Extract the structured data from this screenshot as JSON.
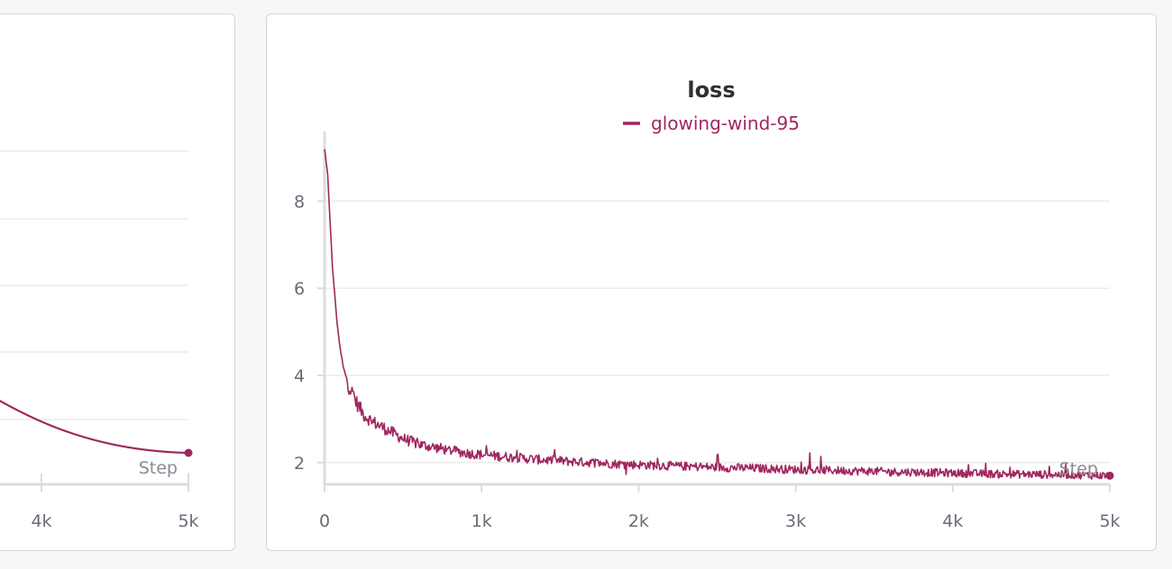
{
  "colors": {
    "series": "#a0275f",
    "grid": "#ececec",
    "axis": "#dcdcdc"
  },
  "left_panel": {
    "x_axis_label": "Step",
    "x_ticks": [
      "4k",
      "5k"
    ]
  },
  "chart_data": {
    "type": "line",
    "title": "loss",
    "xlabel": "Step",
    "ylabel": "",
    "xlim": [
      0,
      5000
    ],
    "ylim": [
      1.5,
      9.6
    ],
    "x_ticks": [
      {
        "value": 0,
        "label": "0"
      },
      {
        "value": 1000,
        "label": "1k"
      },
      {
        "value": 2000,
        "label": "2k"
      },
      {
        "value": 3000,
        "label": "3k"
      },
      {
        "value": 4000,
        "label": "4k"
      },
      {
        "value": 5000,
        "label": "5k"
      }
    ],
    "y_ticks": [
      {
        "value": 2,
        "label": "2"
      },
      {
        "value": 4,
        "label": "4"
      },
      {
        "value": 6,
        "label": "6"
      },
      {
        "value": 8,
        "label": "8"
      }
    ],
    "grid": true,
    "legend_position": "top-center",
    "series": [
      {
        "name": "glowing-wind-95",
        "color": "#a0275f",
        "x": [
          0,
          20,
          50,
          80,
          100,
          120,
          150,
          200,
          250,
          300,
          400,
          500,
          600,
          700,
          800,
          900,
          1000,
          1200,
          1400,
          1600,
          1800,
          2000,
          2250,
          2500,
          2750,
          3000,
          3250,
          3500,
          3750,
          4000,
          4250,
          4500,
          4750,
          5000
        ],
        "y": [
          9.2,
          8.6,
          6.5,
          5.2,
          4.6,
          4.2,
          3.8,
          3.4,
          3.1,
          2.95,
          2.75,
          2.55,
          2.42,
          2.35,
          2.28,
          2.22,
          2.18,
          2.12,
          2.06,
          2.02,
          1.98,
          1.95,
          1.92,
          1.89,
          1.87,
          1.84,
          1.82,
          1.8,
          1.78,
          1.76,
          1.74,
          1.73,
          1.72,
          1.7
        ]
      }
    ]
  }
}
